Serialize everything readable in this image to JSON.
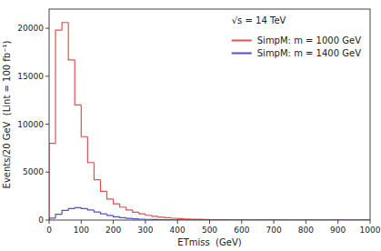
{
  "chart_data": {
    "type": "histogram",
    "annotation": "√s = 14 TeV",
    "x_label": "ETmiss  (GeV)",
    "y_label": "Events/20 GeV  (Lint = 100 fb⁻¹)",
    "xlim": [
      0,
      1000
    ],
    "ylim": [
      0,
      22000
    ],
    "xticks": [
      0,
      100,
      200,
      300,
      400,
      500,
      600,
      700,
      800,
      900,
      1000
    ],
    "yticks": [
      0,
      5000,
      10000,
      15000,
      20000
    ],
    "grid": false,
    "legend": "upper right",
    "bins": [
      0,
      20,
      40,
      60,
      80,
      100,
      120,
      140,
      160,
      180,
      200,
      220,
      240,
      260,
      280,
      300,
      320,
      340,
      360,
      380,
      400,
      420,
      440,
      460,
      480,
      500,
      520,
      540,
      560,
      580,
      600,
      620,
      640,
      660,
      680,
      700,
      720,
      740,
      760,
      780,
      800,
      820,
      840,
      860,
      880,
      900,
      920,
      940,
      960,
      980,
      1000
    ],
    "series": [
      {
        "name": "SimpM: m = 1000 GeV",
        "color": "#e05050",
        "values": [
          8000,
          19800,
          20600,
          16700,
          12000,
          8700,
          6000,
          4200,
          3000,
          2200,
          1700,
          1350,
          1050,
          820,
          650,
          500,
          390,
          300,
          240,
          190,
          150,
          120,
          95,
          75,
          60,
          48,
          38,
          30,
          24,
          19,
          15,
          12,
          9,
          7,
          5,
          4,
          3,
          2,
          2,
          1,
          1,
          1,
          0,
          0,
          0,
          0,
          0,
          0,
          0,
          0
        ]
      },
      {
        "name": "SimpM: m = 1400 GeV",
        "color": "#5050c8",
        "values": [
          200,
          600,
          1000,
          1200,
          1300,
          1200,
          1050,
          850,
          650,
          480,
          350,
          250,
          180,
          130,
          95,
          70,
          52,
          38,
          28,
          20,
          15,
          11,
          8,
          6,
          4,
          3,
          2,
          2,
          1,
          1,
          1,
          0,
          0,
          0,
          0,
          0,
          0,
          0,
          0,
          0,
          0,
          0,
          0,
          0,
          0,
          0,
          0,
          0,
          0,
          0
        ]
      }
    ]
  }
}
